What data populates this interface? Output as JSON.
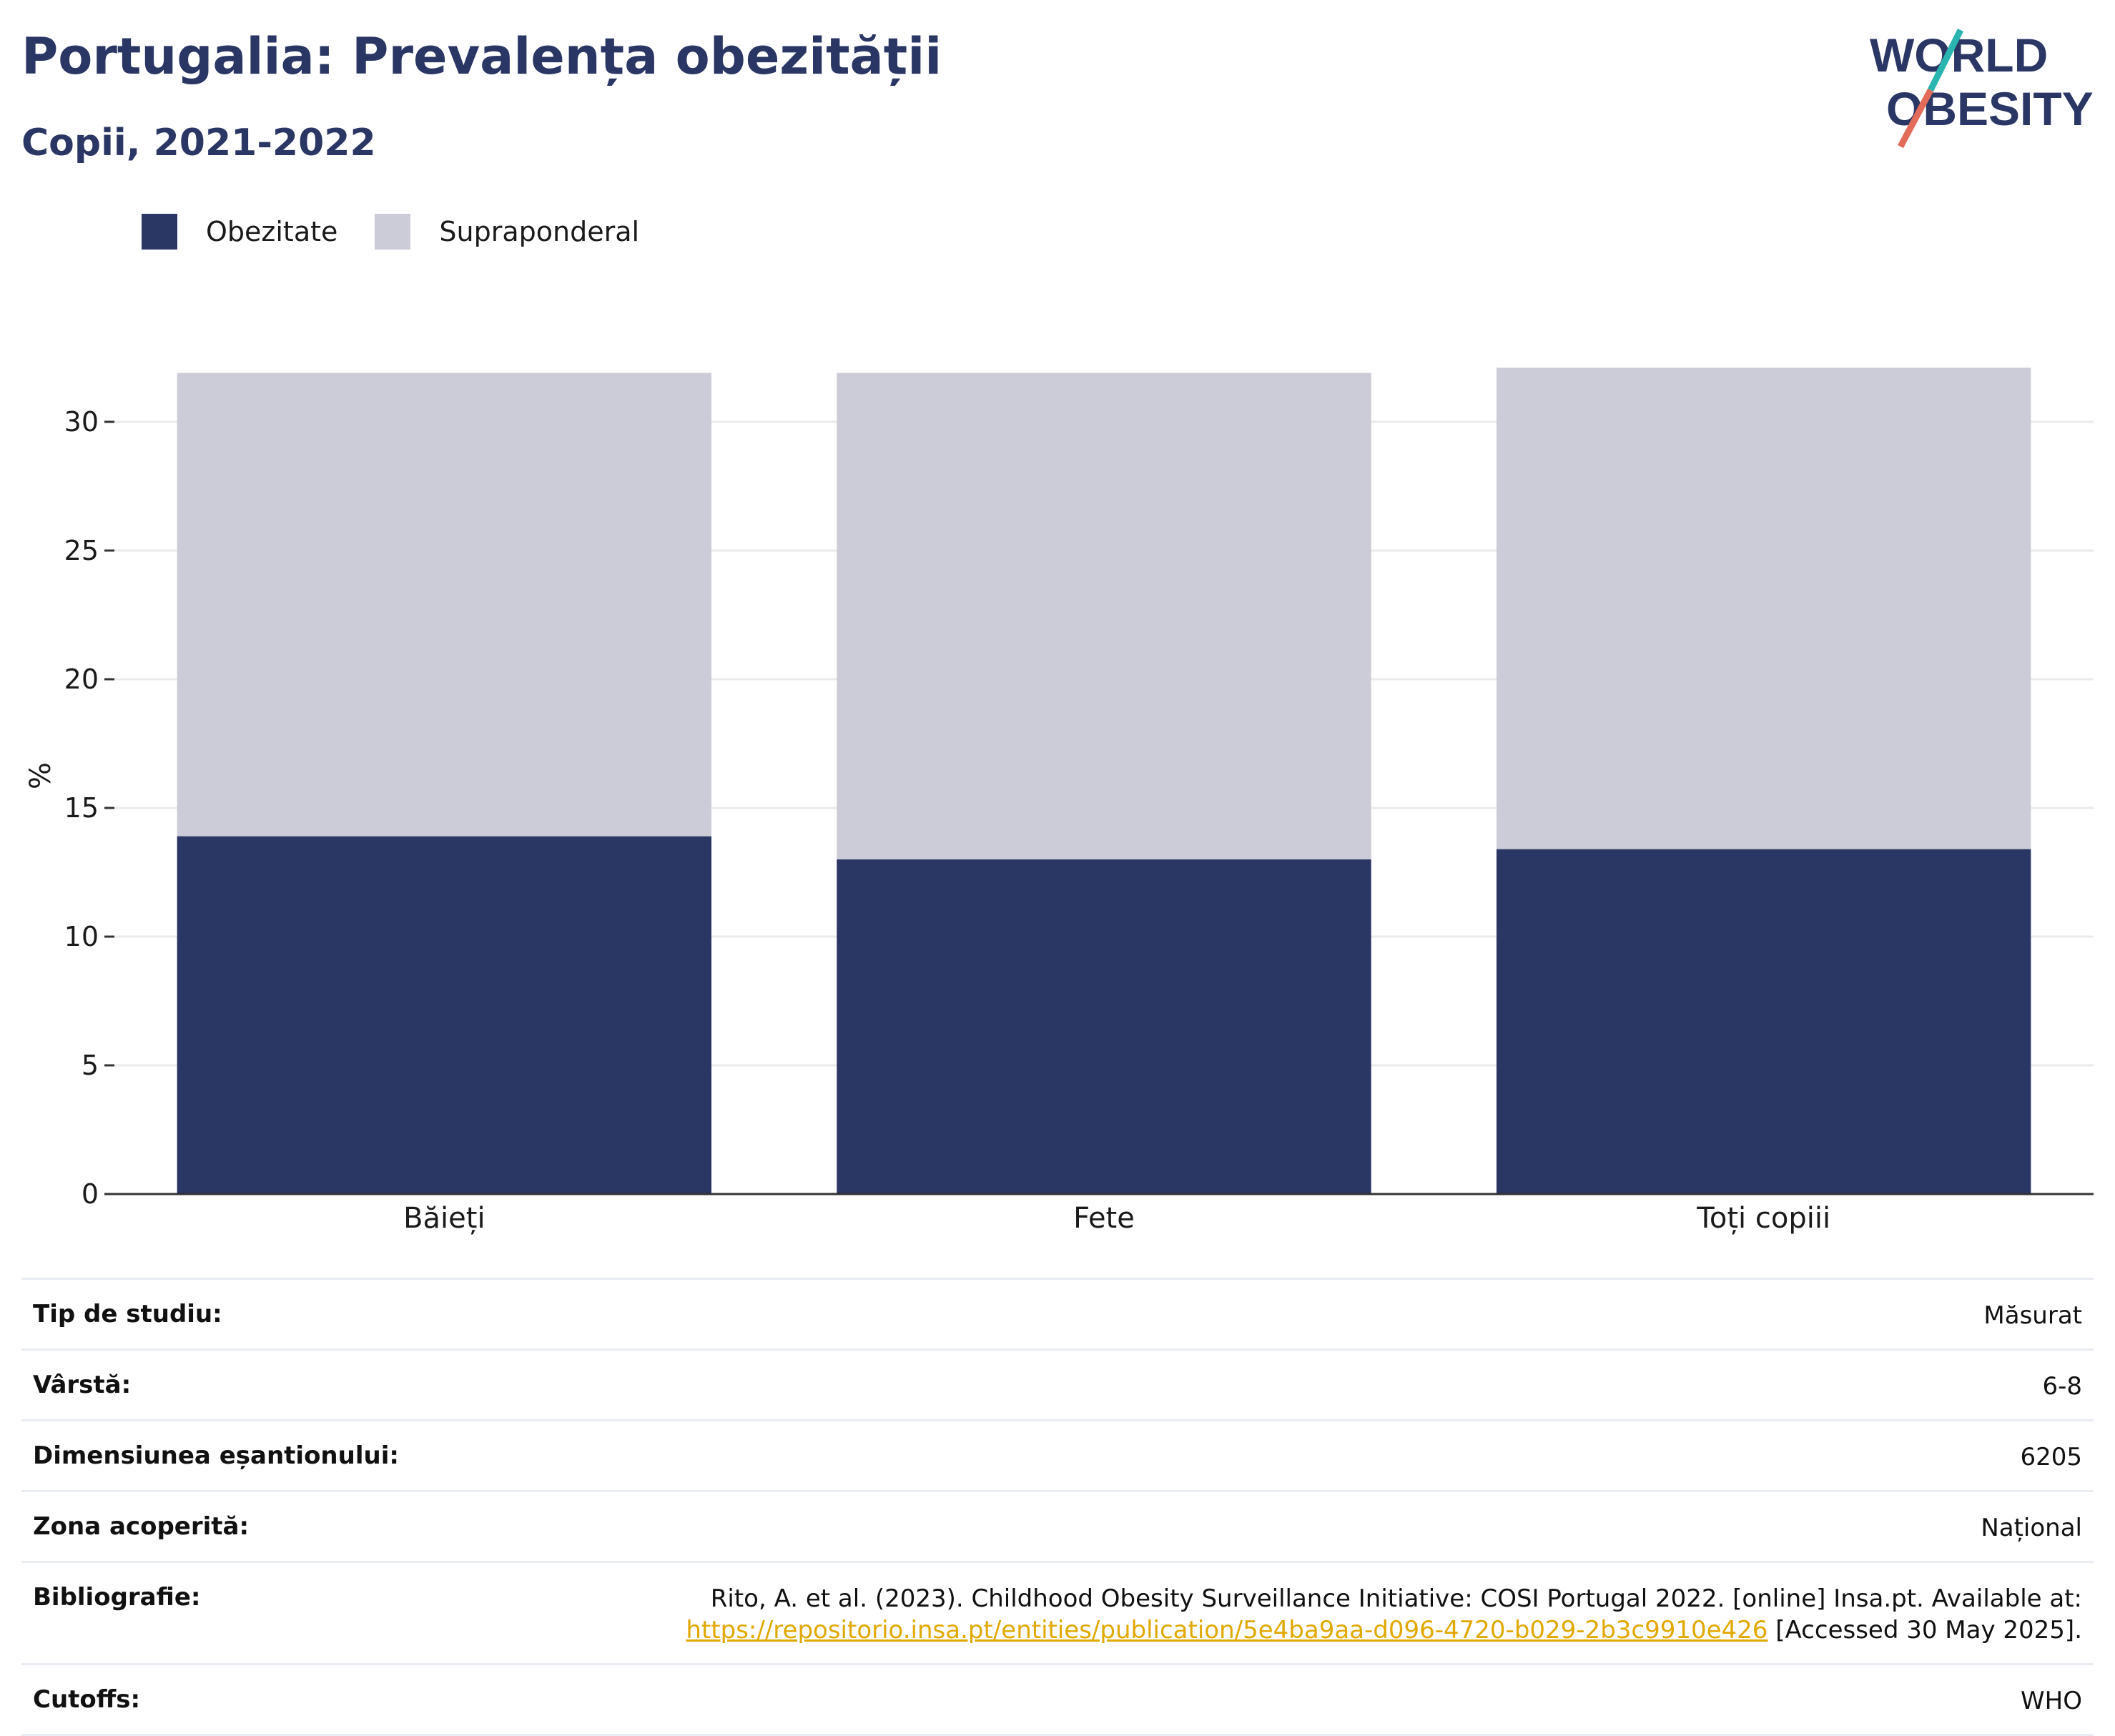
{
  "header": {
    "title": "Portugalia: Prevalența obezității",
    "subtitle": "Copii, 2021-2022"
  },
  "logo": {
    "line1": "WORLD",
    "line2": "OBESITY"
  },
  "chart_data": {
    "type": "bar",
    "stacked": true,
    "categories": [
      "Băieți",
      "Fete",
      "Toți copiii"
    ],
    "series": [
      {
        "name": "Obezitate",
        "values": [
          13.9,
          13.0,
          13.4
        ],
        "color": "#2a3663"
      },
      {
        "name": "Supraponderal",
        "values": [
          18.0,
          18.9,
          18.7
        ],
        "color": "#cbccd7"
      }
    ],
    "ylabel": "%",
    "ylim": [
      0,
      32.5
    ],
    "yticks": [
      0,
      5,
      10,
      15,
      20,
      25,
      30
    ],
    "grid": true,
    "legend_position": "top-left"
  },
  "meta": {
    "rows": [
      {
        "label": "Tip de studiu:",
        "value": "Măsurat"
      },
      {
        "label": "Vârstă:",
        "value": "6-8"
      },
      {
        "label": "Dimensiunea eșantionului:",
        "value": "6205"
      },
      {
        "label": "Zona acoperită:",
        "value": "Național"
      },
      {
        "label": "Bibliografie:",
        "value_line1": "Rito, A. et al. (2023). Childhood Obesity Surveillance Initiative: COSI Portugal 2022. [online] Insa.pt. Available at:",
        "link": "https://repositorio.insa.pt/entities/publication/5e4ba9aa-d096-4720-b029-2b3c9910e426",
        "value_suffix": " [Accessed 30 May 2025]."
      },
      {
        "label": "Cutoffs:",
        "value": "WHO"
      }
    ]
  }
}
